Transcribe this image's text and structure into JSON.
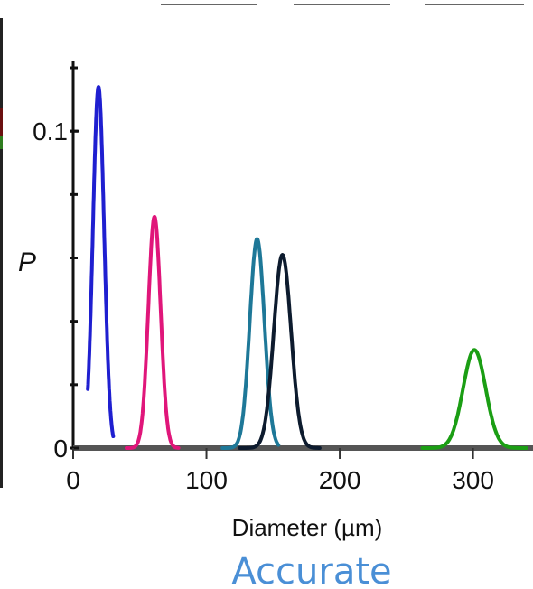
{
  "chart_data": {
    "type": "line",
    "title": "",
    "xlabel": "Diameter (µm)",
    "ylabel": "P",
    "xlim": [
      0,
      345
    ],
    "ylim": [
      0,
      0.122
    ],
    "x_ticks": [
      0,
      100,
      200,
      300
    ],
    "x_tick_labels": [
      "0",
      "100",
      "200",
      "300"
    ],
    "y_ticks": [
      0,
      0.1
    ],
    "y_tick_labels": [
      "0",
      "0.1"
    ],
    "series": [
      {
        "color": "#1f1fd0",
        "mean": 19,
        "sd": 4.2,
        "peak": 0.114,
        "x_min": 11,
        "x_max": 30
      },
      {
        "color": "#e0167a",
        "mean": 61,
        "sd": 4.6,
        "peak": 0.073,
        "x_min": 40,
        "x_max": 79
      },
      {
        "color": "#1e7898",
        "mean": 138,
        "sd": 5.5,
        "peak": 0.066,
        "x_min": 112,
        "x_max": 154
      },
      {
        "color": "#0d1b2e",
        "mean": 157,
        "sd": 6.5,
        "peak": 0.061,
        "x_min": 125,
        "x_max": 185
      },
      {
        "color": "#1b9e14",
        "mean": 301,
        "sd": 8.5,
        "peak": 0.031,
        "x_min": 262,
        "x_max": 340
      }
    ]
  },
  "caption": "Accurate"
}
